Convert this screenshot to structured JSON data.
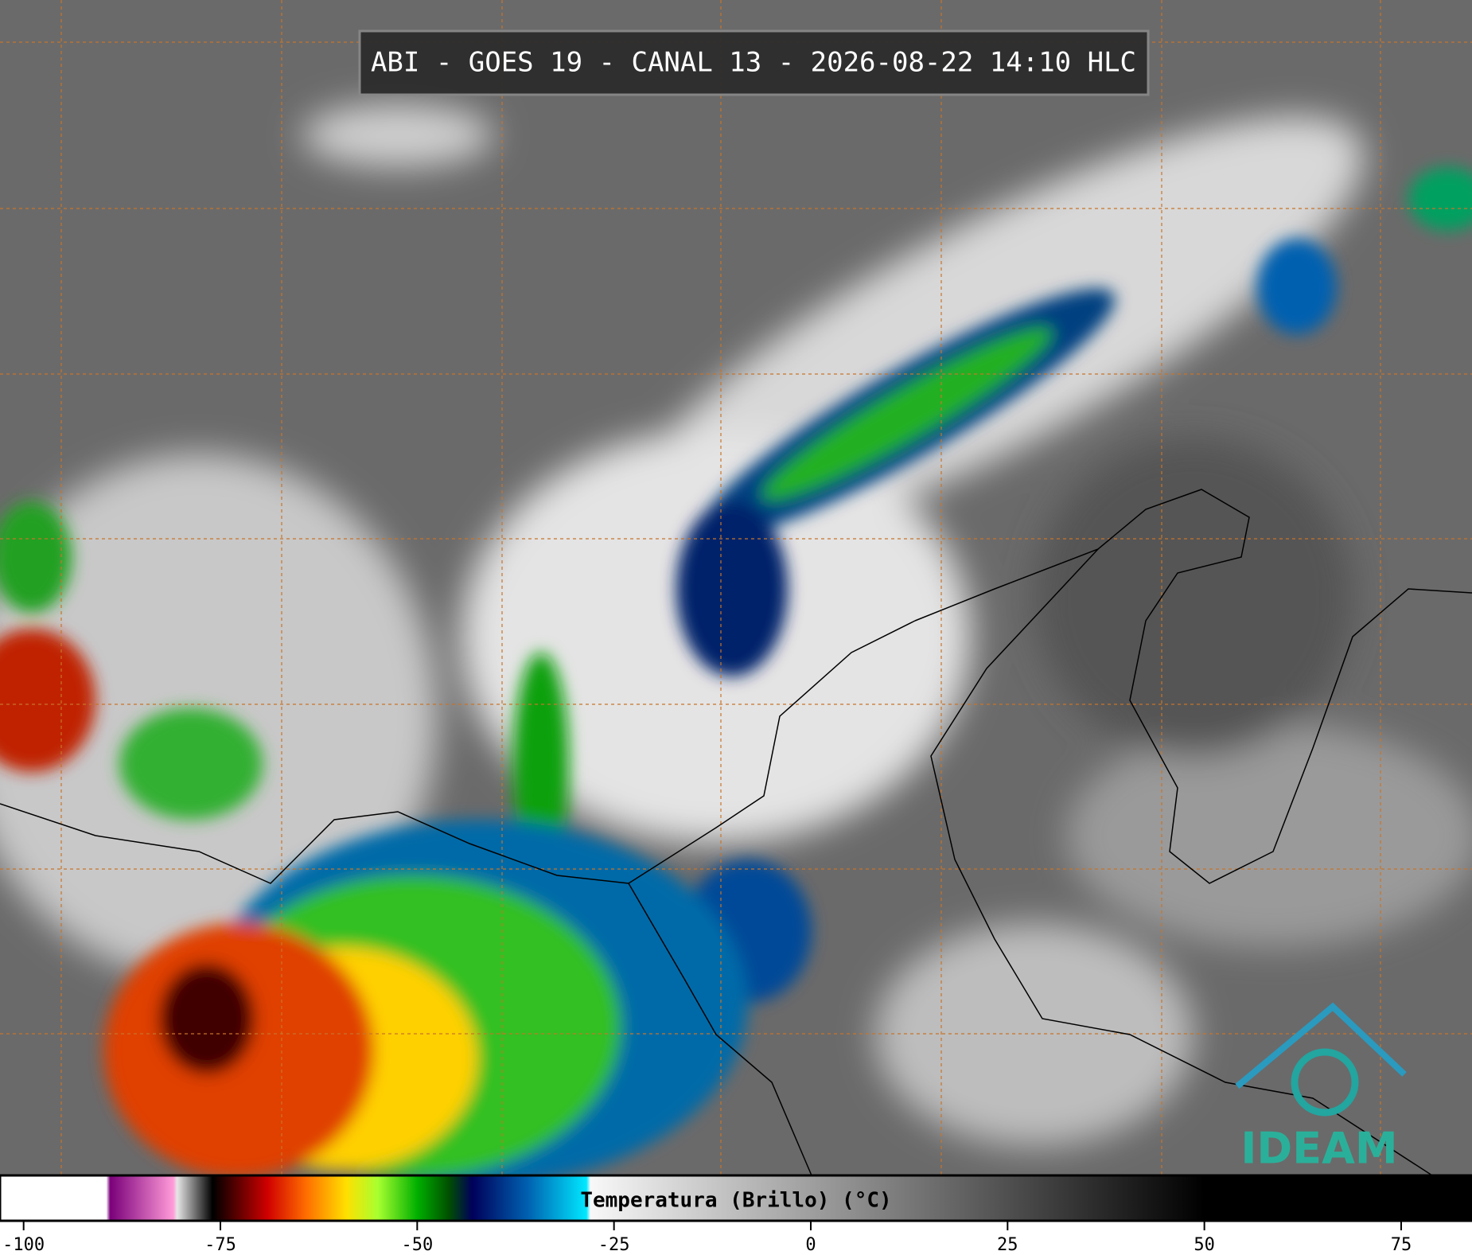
{
  "title": "ABI - GOES 19 - CANAL 13 - 2026-08-22 14:10 HLC",
  "logo": "IDEAM",
  "colorbar": {
    "label": "Temperatura (Brillo) (°C)",
    "xlim": [
      -103,
      84
    ],
    "xticks": [
      -100,
      -75,
      -50,
      -25,
      0,
      25,
      50,
      75
    ],
    "colormap": [
      {
        "value": -103,
        "color": "#ffffff"
      },
      {
        "value": -89.5,
        "color": "#ffffff"
      },
      {
        "value": -89,
        "color": "#7a007a"
      },
      {
        "value": -81,
        "color": "#ff9ad8"
      },
      {
        "value": -80.5,
        "color": "#e6e6e6"
      },
      {
        "value": -76,
        "color": "#000000"
      },
      {
        "value": -74,
        "color": "#3a0000"
      },
      {
        "value": -69,
        "color": "#d00000"
      },
      {
        "value": -64,
        "color": "#ff7000"
      },
      {
        "value": -59,
        "color": "#ffe000"
      },
      {
        "value": -55,
        "color": "#a8ff30"
      },
      {
        "value": -50,
        "color": "#00b000"
      },
      {
        "value": -46,
        "color": "#005000"
      },
      {
        "value": -43,
        "color": "#00005a"
      },
      {
        "value": -36,
        "color": "#0060b0"
      },
      {
        "value": -28.5,
        "color": "#00e8ff"
      },
      {
        "value": -28,
        "color": "#f8f8f8"
      },
      {
        "value": 50,
        "color": "#000000"
      },
      {
        "value": 84,
        "color": "#000000"
      }
    ]
  }
}
